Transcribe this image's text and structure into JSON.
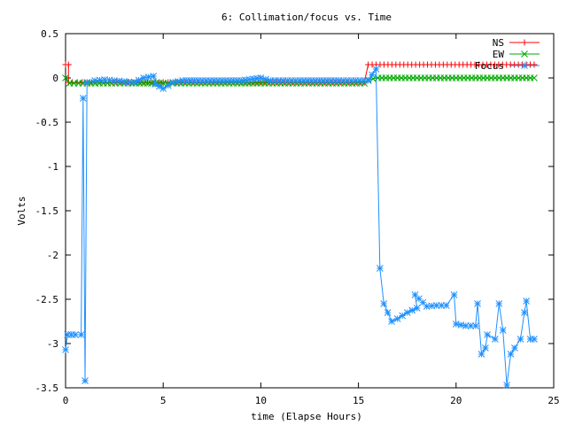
{
  "chart_data": {
    "type": "line",
    "title": "6: Collimation/focus vs. Time",
    "xlabel": "time (Elapse Hours)",
    "ylabel": "Volts",
    "xlim": [
      0,
      25
    ],
    "ylim": [
      -3.5,
      0.5
    ],
    "xticks": [
      0,
      5,
      10,
      15,
      20,
      25
    ],
    "yticks": [
      0.5,
      0,
      -0.5,
      -1,
      -1.5,
      -2,
      -2.5,
      -3,
      -3.5
    ],
    "xtick_labels": [
      "0",
      "5",
      "10",
      "15",
      "20",
      "25"
    ],
    "ytick_labels": [
      "0.5",
      "0",
      "-0.5",
      "-1",
      "-1.5",
      "-2",
      "-2.5",
      "-3",
      "-3.5"
    ],
    "grid": false,
    "legend_position": "top-right",
    "series": [
      {
        "name": "NS",
        "color": "#ff0000",
        "marker": "plus",
        "points": [
          [
            0,
            0.15
          ],
          [
            0.15,
            0.15
          ],
          [
            0.15,
            -0.05
          ],
          [
            0.35,
            -0.05
          ],
          [
            1.1,
            -0.05
          ],
          [
            2,
            -0.05
          ],
          [
            3,
            -0.05
          ],
          [
            4,
            -0.05
          ],
          [
            5,
            -0.05
          ],
          [
            5.5,
            -0.05
          ],
          [
            9,
            -0.05
          ],
          [
            10,
            -0.05
          ],
          [
            15.3,
            -0.05
          ],
          [
            15.5,
            0.15
          ],
          [
            24,
            0.15
          ]
        ]
      },
      {
        "name": "EW",
        "color": "#00aa00",
        "marker": "x",
        "points": [
          [
            0,
            0
          ],
          [
            0.2,
            -0.06
          ],
          [
            1.1,
            -0.06
          ],
          [
            3,
            -0.06
          ],
          [
            5,
            -0.06
          ],
          [
            5.5,
            -0.06
          ],
          [
            9,
            -0.06
          ],
          [
            10,
            -0.06
          ],
          [
            15.3,
            -0.06
          ],
          [
            15.5,
            -0.02
          ],
          [
            16,
            0
          ],
          [
            24,
            0
          ]
        ]
      },
      {
        "name": "Focus",
        "color": "#1e90ff",
        "marker": "star",
        "points": [
          [
            0,
            -3.07
          ],
          [
            0.1,
            -2.9
          ],
          [
            0.5,
            -2.9
          ],
          [
            0.8,
            -2.9
          ],
          [
            0.9,
            -0.23
          ],
          [
            1.0,
            -3.42
          ],
          [
            1.1,
            -0.05
          ],
          [
            1.5,
            -0.03
          ],
          [
            2,
            -0.02
          ],
          [
            2.5,
            -0.03
          ],
          [
            3,
            -0.04
          ],
          [
            3.5,
            -0.05
          ],
          [
            4,
            0
          ],
          [
            4.5,
            0.02
          ],
          [
            4.6,
            -0.07
          ],
          [
            5,
            -0.12
          ],
          [
            5.5,
            -0.05
          ],
          [
            6,
            -0.03
          ],
          [
            7,
            -0.03
          ],
          [
            8,
            -0.03
          ],
          [
            9,
            -0.03
          ],
          [
            10,
            0
          ],
          [
            10.5,
            -0.03
          ],
          [
            12,
            -0.03
          ],
          [
            14,
            -0.03
          ],
          [
            15.5,
            -0.03
          ],
          [
            15.9,
            0.1
          ],
          [
            16.1,
            -2.15
          ],
          [
            16.3,
            -2.55
          ],
          [
            16.5,
            -2.65
          ],
          [
            16.7,
            -2.75
          ],
          [
            17,
            -2.72
          ],
          [
            17.5,
            -2.65
          ],
          [
            18,
            -2.6
          ],
          [
            17.9,
            -2.45
          ],
          [
            18.5,
            -2.58
          ],
          [
            19,
            -2.57
          ],
          [
            19.5,
            -2.57
          ],
          [
            19.9,
            -2.45
          ],
          [
            20,
            -2.78
          ],
          [
            20.5,
            -2.8
          ],
          [
            21,
            -2.8
          ],
          [
            21.1,
            -2.55
          ],
          [
            21.3,
            -3.12
          ],
          [
            21.5,
            -3.05
          ],
          [
            21.6,
            -2.9
          ],
          [
            22,
            -2.95
          ],
          [
            22.2,
            -2.55
          ],
          [
            22.4,
            -2.85
          ],
          [
            22.6,
            -3.47
          ],
          [
            22.8,
            -3.12
          ],
          [
            23,
            -3.05
          ],
          [
            23.3,
            -2.95
          ],
          [
            23.5,
            -2.65
          ],
          [
            23.6,
            -2.52
          ],
          [
            23.8,
            -2.95
          ],
          [
            24,
            -2.95
          ]
        ]
      }
    ]
  }
}
